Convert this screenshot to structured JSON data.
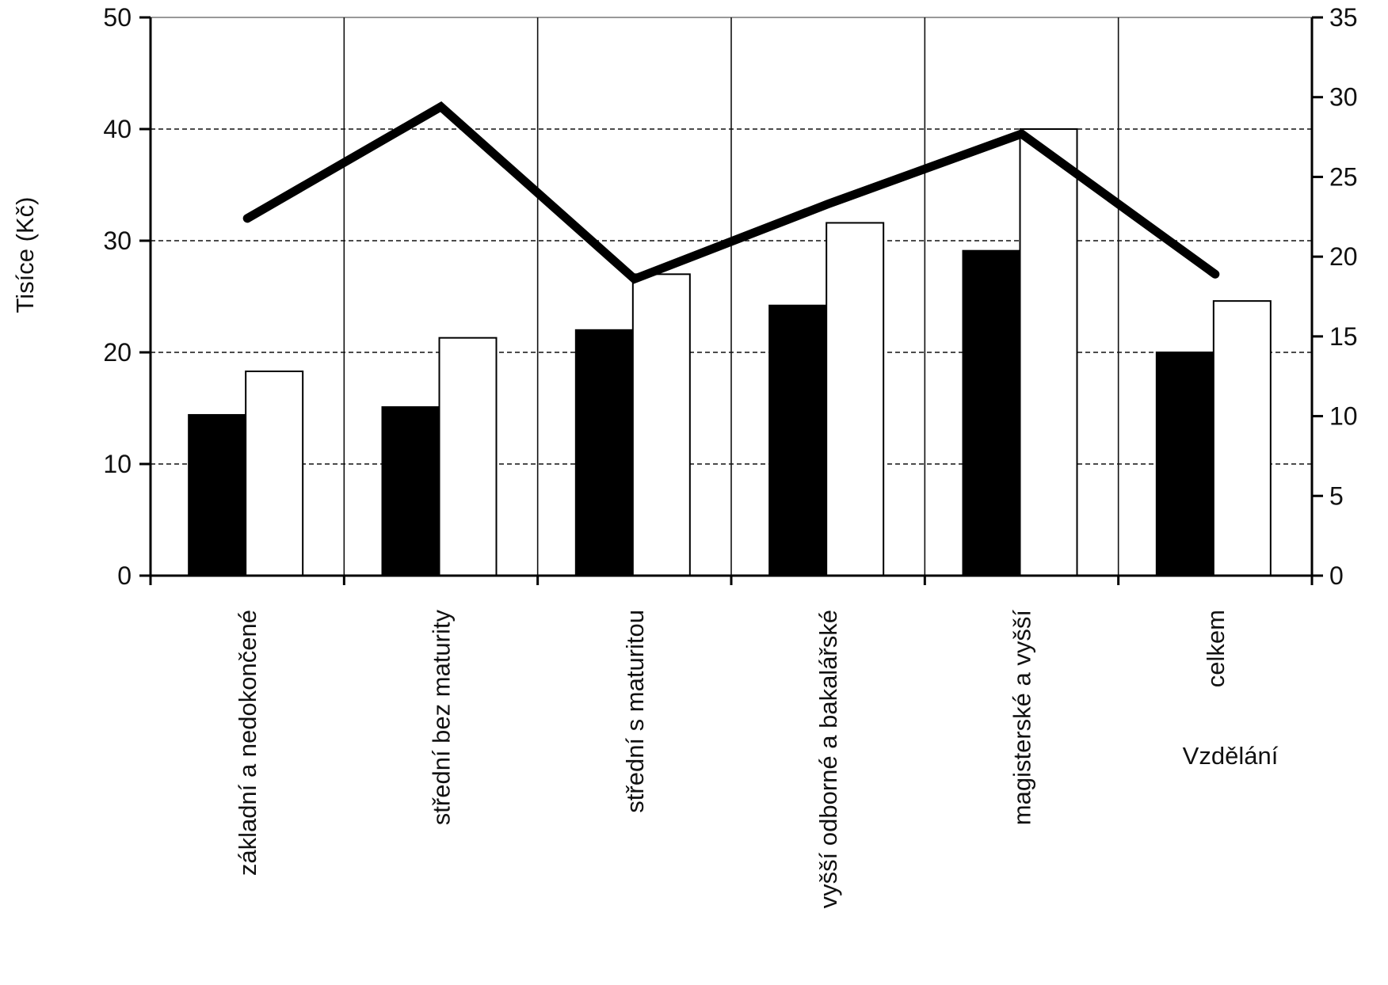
{
  "chart_data": {
    "type": "bar",
    "categories": [
      "základní a nedokončené",
      "střední bez maturity",
      "střední s maturitou",
      "vyšší odborné a bakalářské",
      "magisterské a vyšší",
      "celkem"
    ],
    "series": [
      {
        "axis": "left",
        "kind": "bar",
        "color": "#000000",
        "values": [
          14.4,
          15.1,
          22.0,
          24.2,
          29.1,
          20.0
        ]
      },
      {
        "axis": "left",
        "kind": "bar",
        "color": "#ffffff",
        "values": [
          18.3,
          21.3,
          27.0,
          31.6,
          40.0,
          24.6
        ]
      },
      {
        "axis": "right",
        "kind": "line",
        "color": "#000000",
        "values": [
          22.4,
          29.4,
          18.6,
          23.3,
          27.7,
          18.9
        ]
      }
    ],
    "ylabel": "Tisíce (Kč)",
    "xlabel": "Vzdělání",
    "ylim": [
      0,
      50
    ],
    "y_ticks": [
      "0",
      "10",
      "20",
      "30",
      "40",
      "50"
    ],
    "y2lim": [
      0,
      35
    ],
    "y2_ticks": [
      "0",
      "5",
      "10",
      "15",
      "20",
      "25",
      "30",
      "35"
    ],
    "grid": "horizontal dashed, vertical solid between categories",
    "legend": "none"
  }
}
